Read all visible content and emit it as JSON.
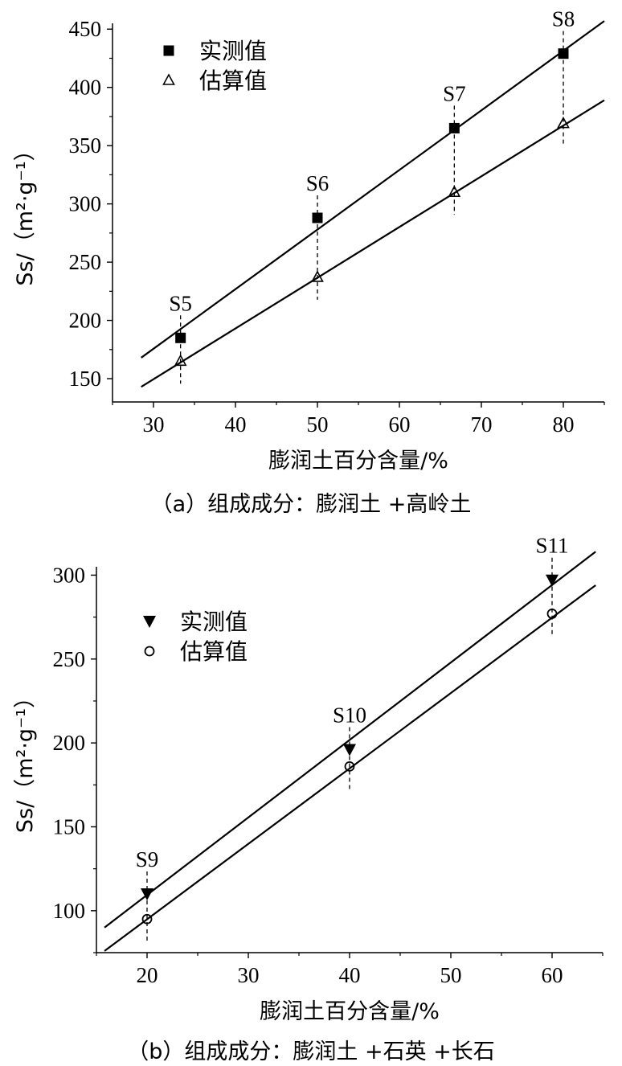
{
  "chart_data": [
    {
      "type": "scatter",
      "caption": "（a）组成成分：膨润土 +高岭土",
      "xlabel": "膨润土百分含量/%",
      "ylabel": "Ss/（m²·g⁻¹）",
      "xlim": [
        25,
        85
      ],
      "ylim": [
        130,
        455
      ],
      "xticks": [
        30,
        40,
        50,
        60,
        70,
        80
      ],
      "yticks": [
        150,
        200,
        250,
        300,
        350,
        400,
        450
      ],
      "legend_position": "top-left",
      "series": [
        {
          "name": "实测值",
          "marker": "filled-square",
          "x": [
            33.3,
            50,
            66.7,
            80
          ],
          "y": [
            185,
            288,
            365,
            429
          ]
        },
        {
          "name": "估算值",
          "marker": "open-triangle",
          "x": [
            33.3,
            50,
            66.7,
            80
          ],
          "y": [
            165,
            237,
            310,
            369
          ]
        }
      ],
      "fit_lines": [
        {
          "series": "实测值",
          "x": [
            28.5,
            85
          ],
          "y": [
            168,
            457
          ]
        },
        {
          "series": "估算值",
          "x": [
            28.5,
            85
          ],
          "y": [
            143,
            389
          ]
        }
      ],
      "annotations": [
        {
          "text": "S5",
          "x": 33.3
        },
        {
          "text": "S6",
          "x": 50
        },
        {
          "text": "S7",
          "x": 66.7
        },
        {
          "text": "S8",
          "x": 80
        }
      ]
    },
    {
      "type": "scatter",
      "caption": "（b）组成成分：膨润土 +石英 +长石",
      "xlabel": "膨润土百分含量/%",
      "ylabel": "Ss/（m²·g⁻¹）",
      "xlim": [
        15,
        65
      ],
      "ylim": [
        75,
        305
      ],
      "xticks": [
        20,
        30,
        40,
        50,
        60
      ],
      "yticks": [
        100,
        150,
        200,
        250,
        300
      ],
      "legend_position": "top-left",
      "series": [
        {
          "name": "实测值",
          "marker": "filled-down-triangle",
          "x": [
            20,
            40,
            60
          ],
          "y": [
            110,
            196,
            297
          ]
        },
        {
          "name": "估算值",
          "marker": "open-circle",
          "x": [
            20,
            40,
            60
          ],
          "y": [
            95,
            186,
            277
          ]
        }
      ],
      "fit_lines": [
        {
          "series": "实测值",
          "x": [
            15.8,
            64.3
          ],
          "y": [
            90,
            314
          ]
        },
        {
          "series": "估算值",
          "x": [
            15.8,
            64.3
          ],
          "y": [
            76,
            294
          ]
        }
      ],
      "annotations": [
        {
          "text": "S9",
          "x": 20
        },
        {
          "text": "S10",
          "x": 40
        },
        {
          "text": "S11",
          "x": 60
        }
      ]
    }
  ]
}
